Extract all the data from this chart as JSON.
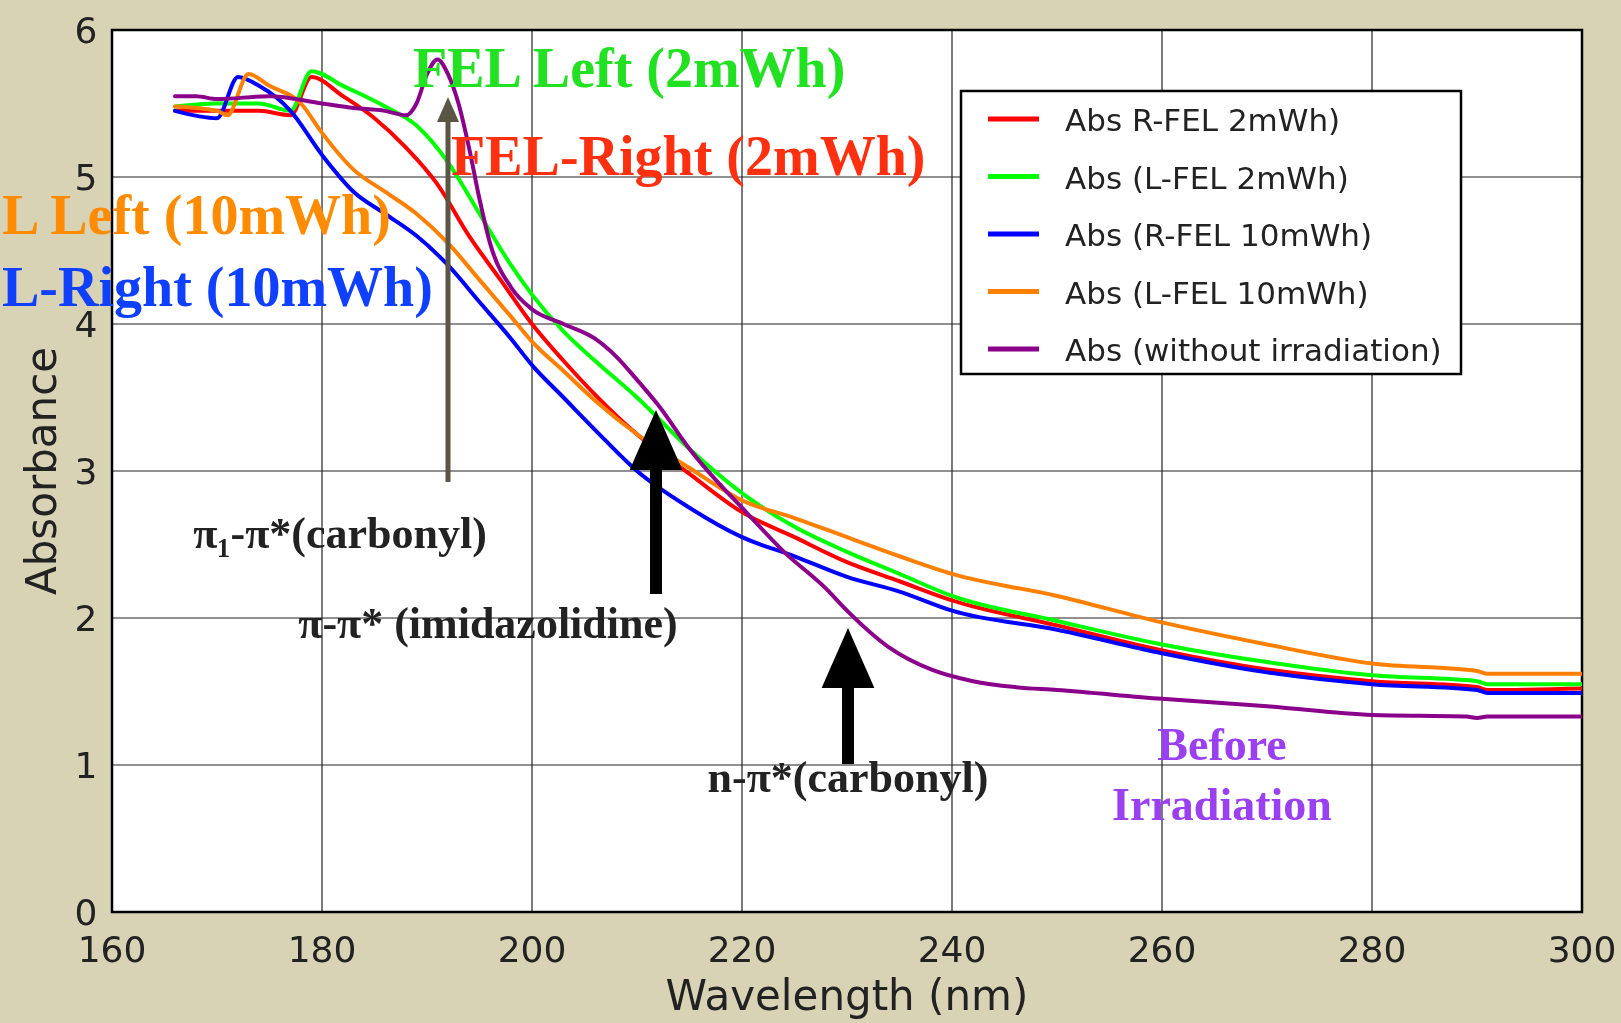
{
  "chart_data": {
    "type": "line",
    "xlabel": "Wavelength (nm)",
    "ylabel": "Absorbance",
    "xlim": [
      160,
      300
    ],
    "xticks": [
      160,
      180,
      200,
      220,
      240,
      260,
      280,
      300
    ],
    "ylim": [
      0,
      6
    ],
    "yticks": [
      0,
      1,
      2,
      3,
      4,
      5,
      6
    ],
    "grid": true,
    "legend": "top right",
    "line_style": "solid",
    "series": [
      {
        "name": "Abs R-FEL 2mWh)",
        "color": "#ff0000",
        "x": [
          166,
          170,
          174,
          177,
          179,
          182,
          185,
          188,
          191,
          194,
          197,
          200,
          203,
          206,
          210,
          215,
          220,
          225,
          230,
          235,
          240,
          250,
          260,
          270,
          280,
          290,
          291,
          300
        ],
        "values": [
          5.45,
          5.45,
          5.45,
          5.42,
          5.68,
          5.55,
          5.4,
          5.2,
          4.95,
          4.6,
          4.3,
          4.0,
          3.75,
          3.52,
          3.25,
          2.98,
          2.72,
          2.55,
          2.38,
          2.25,
          2.12,
          1.95,
          1.78,
          1.65,
          1.57,
          1.53,
          1.51,
          1.52
        ]
      },
      {
        "name": "Abs (L-FEL 2mWh)",
        "color": "#00ff00",
        "x": [
          166,
          170,
          174,
          177,
          179,
          182,
          186,
          189,
          192,
          195,
          198,
          200,
          203,
          206,
          210,
          215,
          220,
          225,
          230,
          235,
          240,
          250,
          260,
          270,
          280,
          290,
          291,
          300
        ],
        "values": [
          5.48,
          5.5,
          5.5,
          5.45,
          5.72,
          5.62,
          5.48,
          5.35,
          5.1,
          4.75,
          4.4,
          4.2,
          3.95,
          3.75,
          3.5,
          3.15,
          2.85,
          2.62,
          2.45,
          2.3,
          2.15,
          1.98,
          1.82,
          1.7,
          1.61,
          1.57,
          1.55,
          1.55
        ]
      },
      {
        "name": "Abs (R-FEL 10mWh)",
        "color": "#0000ff",
        "x": [
          166,
          170,
          172,
          174,
          177,
          180,
          183,
          186,
          189,
          192,
          195,
          198,
          200,
          203,
          206,
          210,
          215,
          220,
          225,
          230,
          235,
          240,
          250,
          260,
          270,
          280,
          290,
          291,
          300
        ],
        "values": [
          5.45,
          5.4,
          5.68,
          5.62,
          5.45,
          5.15,
          4.9,
          4.75,
          4.6,
          4.4,
          4.15,
          3.9,
          3.72,
          3.5,
          3.28,
          3.0,
          2.75,
          2.55,
          2.42,
          2.28,
          2.18,
          2.05,
          1.92,
          1.76,
          1.63,
          1.55,
          1.51,
          1.49,
          1.49
        ]
      },
      {
        "name": "Abs (L-FEL 10mWh)",
        "color": "#ff8000",
        "x": [
          166,
          170,
          171,
          173,
          175,
          178,
          180,
          183,
          186,
          189,
          192,
          195,
          198,
          200,
          203,
          206,
          210,
          215,
          220,
          225,
          230,
          235,
          240,
          250,
          260,
          270,
          280,
          290,
          291,
          300
        ],
        "values": [
          5.48,
          5.45,
          5.42,
          5.7,
          5.62,
          5.5,
          5.3,
          5.05,
          4.9,
          4.75,
          4.55,
          4.3,
          4.05,
          3.88,
          3.68,
          3.48,
          3.25,
          3.02,
          2.8,
          2.68,
          2.55,
          2.42,
          2.3,
          2.15,
          1.97,
          1.82,
          1.69,
          1.64,
          1.62,
          1.62
        ]
      },
      {
        "name": "Abs (without irradiation)",
        "color": "#8b008b",
        "x": [
          166,
          168,
          170,
          175,
          180,
          183,
          186,
          188,
          189,
          190,
          191,
          192,
          193,
          194,
          195,
          196,
          198,
          200,
          203,
          206,
          208,
          210,
          212,
          215,
          218,
          220,
          224,
          228,
          230,
          234,
          238,
          242,
          246,
          250,
          260,
          270,
          280,
          289,
          290,
          291,
          300
        ],
        "values": [
          5.55,
          5.55,
          5.53,
          5.55,
          5.5,
          5.47,
          5.45,
          5.42,
          5.5,
          5.7,
          5.8,
          5.7,
          5.5,
          5.2,
          4.85,
          4.55,
          4.25,
          4.1,
          4.0,
          3.9,
          3.78,
          3.62,
          3.45,
          3.15,
          2.9,
          2.75,
          2.45,
          2.2,
          2.05,
          1.8,
          1.65,
          1.57,
          1.53,
          1.51,
          1.45,
          1.4,
          1.34,
          1.33,
          1.32,
          1.33,
          1.33
        ]
      }
    ],
    "annotations": [
      "FEL Left (2mWh)",
      "FEL-Right (2mWh)",
      "L Left (10mWh)",
      "L-Right (10mWh)",
      "Before Irradiation",
      "π₁-π*(carbonyl)",
      "π-π* (imidazolidine)",
      "n-π*(carbonyl)"
    ]
  }
}
